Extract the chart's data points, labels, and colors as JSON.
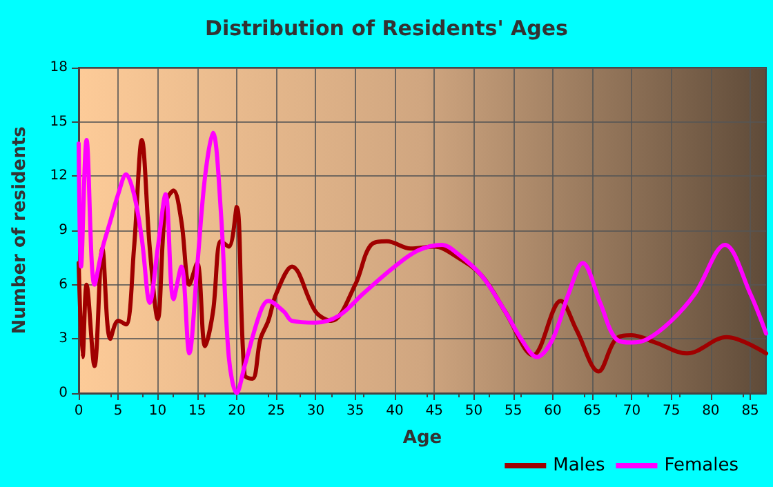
{
  "chart_data": {
    "type": "line",
    "title": "Distribution of Residents' Ages",
    "xlabel": "Age",
    "ylabel": "Number of residents",
    "xlim": [
      0,
      87
    ],
    "xticks": [
      0,
      5,
      10,
      15,
      20,
      25,
      30,
      35,
      40,
      45,
      50,
      55,
      60,
      65,
      70,
      75,
      80,
      85
    ],
    "ylim": [
      0,
      18
    ],
    "yticks": [
      0,
      3,
      6,
      9,
      12,
      15,
      18
    ],
    "grid": true,
    "legend": "bottom right",
    "marker": "none",
    "line_style": "solid",
    "series": [
      {
        "name": "Males",
        "color": "#a00000",
        "x": [
          0,
          0.5,
          1,
          2,
          3,
          4,
          5,
          6,
          7,
          8,
          9,
          10,
          11,
          12,
          13,
          14,
          15,
          16,
          17,
          18,
          19,
          20,
          21,
          22,
          23,
          24,
          25,
          27,
          30,
          32,
          35,
          37,
          39,
          42,
          45,
          48,
          51,
          54,
          57.5,
          61,
          63,
          65.8,
          68,
          70,
          73,
          77,
          82,
          87
        ],
        "values": [
          7.2,
          2,
          6,
          1.5,
          8,
          3,
          4,
          3.8,
          8,
          14,
          8,
          4.1,
          10.5,
          11.2,
          9.5,
          6,
          7.2,
          2.6,
          4.5,
          8.4,
          8.1,
          10.3,
          1,
          0.8,
          3,
          4,
          5.5,
          7,
          4.5,
          4,
          6,
          8.2,
          8.4,
          8,
          8.1,
          7.5,
          6.5,
          4.5,
          2.1,
          5.1,
          3.5,
          1.2,
          3,
          3.2,
          2.8,
          2.2,
          3.1,
          2.2
        ]
      },
      {
        "name": "Females",
        "color": "#ff00ff",
        "x": [
          0,
          0.3,
          1,
          2,
          3,
          4,
          5,
          6,
          7,
          8,
          9,
          10,
          11,
          12,
          13,
          14,
          15,
          16,
          17,
          18,
          19,
          20,
          21,
          23,
          24,
          26,
          27,
          30,
          33,
          36,
          40,
          43,
          46,
          48,
          51,
          54,
          56,
          58,
          60,
          62,
          63.8,
          66,
          68,
          70,
          72,
          75,
          78,
          81.8,
          85,
          87
        ],
        "values": [
          13.8,
          7,
          14,
          6,
          8,
          9.5,
          11,
          12.1,
          11,
          8.5,
          5,
          8,
          11,
          5.2,
          7,
          2.2,
          7,
          12,
          14.4,
          10,
          2,
          0,
          1.5,
          4.5,
          5.1,
          4.5,
          4,
          3.9,
          4.3,
          5.5,
          7,
          7.9,
          8.2,
          7.7,
          6.5,
          4.5,
          3,
          2,
          3,
          5.5,
          7.2,
          5,
          3,
          2.8,
          3,
          4,
          5.5,
          8.2,
          5.5,
          3.3
        ]
      }
    ]
  }
}
